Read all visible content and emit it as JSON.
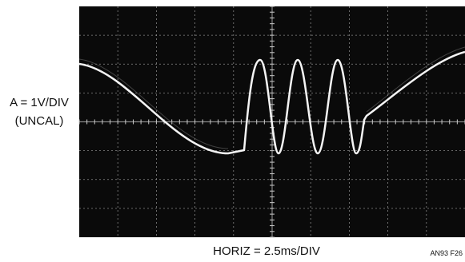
{
  "labels": {
    "vertical_scale": "A = 1V/DIV",
    "vertical_note": "(UNCAL)",
    "horizontal_scale": "HORIZ = 2.5ms/DIV",
    "figure_id": "AN93 F26"
  }
}
